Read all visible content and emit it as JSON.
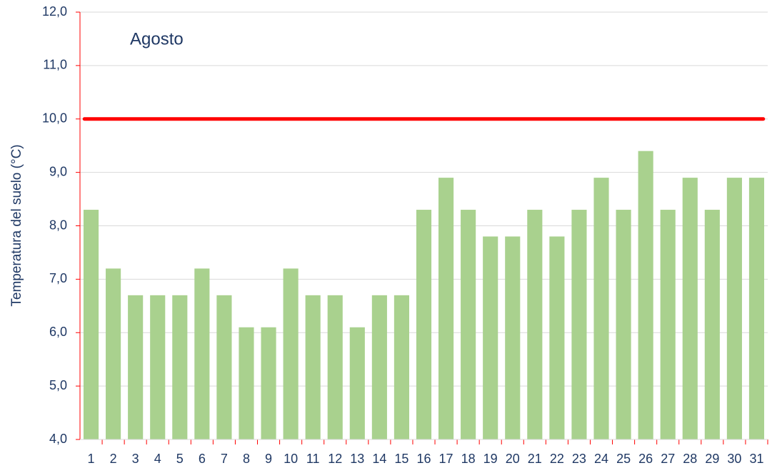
{
  "chart_data": {
    "type": "bar",
    "annotation": "Agosto",
    "y_label": "Temperatura del suelo (°C)",
    "categories": [
      "1",
      "2",
      "3",
      "4",
      "5",
      "6",
      "7",
      "8",
      "9",
      "10",
      "11",
      "12",
      "13",
      "14",
      "15",
      "16",
      "17",
      "18",
      "19",
      "20",
      "21",
      "22",
      "23",
      "24",
      "25",
      "26",
      "27",
      "28",
      "29",
      "30",
      "31"
    ],
    "values": [
      8.3,
      7.2,
      6.7,
      6.7,
      6.7,
      7.2,
      6.7,
      6.1,
      6.1,
      7.2,
      6.7,
      6.7,
      6.1,
      6.7,
      6.7,
      8.3,
      8.9,
      8.3,
      7.8,
      7.8,
      8.3,
      7.8,
      8.3,
      8.9,
      8.3,
      9.4,
      8.3,
      8.9,
      8.3,
      8.9,
      8.9
    ],
    "color": "#a9d18e",
    "reference_line": {
      "value": 10,
      "color": "#ff0000"
    },
    "ylim": [
      4,
      12
    ],
    "yticks": [
      {
        "value": 4,
        "label": "4,0"
      },
      {
        "value": 5,
        "label": "5,0"
      },
      {
        "value": 6,
        "label": "6,0"
      },
      {
        "value": 7,
        "label": "7,0"
      },
      {
        "value": 8,
        "label": "8,0"
      },
      {
        "value": 9,
        "label": "9,0"
      },
      {
        "value": 10,
        "label": "10,0"
      },
      {
        "value": 11,
        "label": "11,0"
      },
      {
        "value": 12,
        "label": "12,0"
      }
    ],
    "grid": true
  }
}
